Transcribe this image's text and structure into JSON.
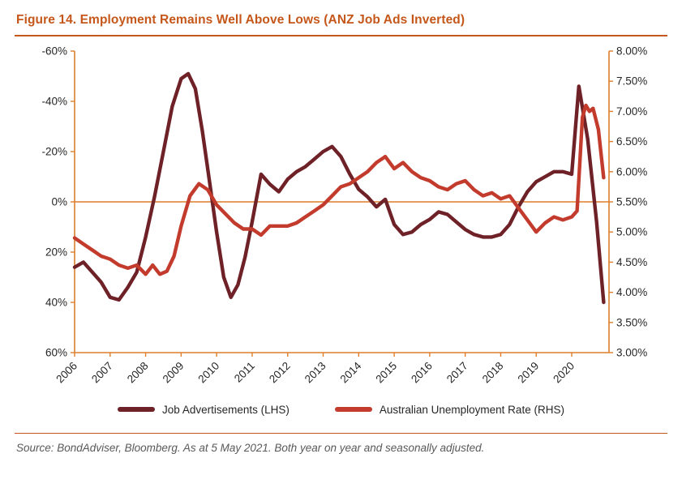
{
  "figure": {
    "title": "Figure 14. Employment Remains Well Above Lows (ANZ Job Ads Inverted)",
    "source": "Source: BondAdviser, Bloomberg. As at 5 May 2021. Both year on year and seasonally adjusted."
  },
  "colors": {
    "accent_orange": "#C5571A",
    "axis_orange": "#DE7E2B",
    "job_ads": "#6E2127",
    "unemployment": "#C23B2C",
    "tick_text": "#262626",
    "source_gray": "#595959"
  },
  "legend": {
    "items": [
      {
        "label": "Job Advertisements (LHS)",
        "color_key": "job_ads"
      },
      {
        "label": "Australian Unemployment Rate (RHS)",
        "color_key": "unemployment"
      }
    ]
  },
  "chart_data": {
    "type": "line",
    "title": "Employment Remains Well Above Lows (ANZ Job Ads Inverted)",
    "x_range": [
      2006,
      2021.05
    ],
    "x_ticks": [
      2006,
      2007,
      2008,
      2009,
      2010,
      2011,
      2012,
      2013,
      2014,
      2015,
      2016,
      2017,
      2018,
      2019,
      2020
    ],
    "x_tick_labels": [
      "2006",
      "2007",
      "2008",
      "2009",
      "2010",
      "2011",
      "2012",
      "2013",
      "2014",
      "2015",
      "2016",
      "2017",
      "2018",
      "2019",
      "2020"
    ],
    "lhs": {
      "label": "Job Advertisements YoY % (inverted)",
      "inverted": true,
      "range": [
        -60,
        60
      ],
      "ticks": [
        -60,
        -40,
        -20,
        0,
        20,
        40,
        60
      ],
      "tick_labels": [
        "-60%",
        "-40%",
        "-20%",
        "0%",
        "20%",
        "40%",
        "60%"
      ]
    },
    "rhs": {
      "label": "Australian Unemployment Rate %",
      "range": [
        3,
        8
      ],
      "ticks": [
        8,
        7.5,
        7,
        6.5,
        6,
        5.5,
        5,
        4.5,
        4,
        3.5,
        3
      ],
      "tick_labels": [
        "8.00%",
        "7.50%",
        "7.00%",
        "6.50%",
        "6.00%",
        "5.50%",
        "5.00%",
        "4.50%",
        "4.00%",
        "3.50%",
        "3.00%"
      ]
    },
    "zero_line": {
      "lhs_value": 0,
      "rhs_value": 5.5
    },
    "series": [
      {
        "name": "Job Advertisements (LHS)",
        "axis": "lhs",
        "color_key": "job_ads",
        "x": [
          2006.0,
          2006.25,
          2006.5,
          2006.75,
          2007.0,
          2007.25,
          2007.5,
          2007.75,
          2008.0,
          2008.25,
          2008.5,
          2008.75,
          2009.0,
          2009.2,
          2009.4,
          2009.6,
          2009.8,
          2010.0,
          2010.2,
          2010.4,
          2010.6,
          2010.8,
          2011.0,
          2011.25,
          2011.5,
          2011.75,
          2012.0,
          2012.25,
          2012.5,
          2012.75,
          2013.0,
          2013.25,
          2013.5,
          2013.75,
          2014.0,
          2014.25,
          2014.5,
          2014.75,
          2015.0,
          2015.25,
          2015.5,
          2015.75,
          2016.0,
          2016.25,
          2016.5,
          2016.75,
          2017.0,
          2017.25,
          2017.5,
          2017.75,
          2018.0,
          2018.25,
          2018.5,
          2018.75,
          2019.0,
          2019.25,
          2019.5,
          2019.75,
          2020.0,
          2020.2,
          2020.45,
          2020.7,
          2020.9
        ],
        "values": [
          26,
          24,
          28,
          32,
          38,
          39,
          34,
          28,
          14,
          -2,
          -20,
          -38,
          -49,
          -51,
          -45,
          -28,
          -8,
          12,
          30,
          38,
          33,
          22,
          8,
          -11,
          -7,
          -4,
          -9,
          -12,
          -14,
          -17,
          -20,
          -22,
          -18,
          -11,
          -5,
          -2,
          2,
          -1,
          9,
          13,
          12,
          9,
          7,
          4,
          5,
          8,
          11,
          13,
          14,
          14,
          13,
          9,
          2,
          -4,
          -8,
          -10,
          -12,
          -12,
          -11,
          -46,
          -25,
          8,
          40
        ]
      },
      {
        "name": "Australian Unemployment Rate (RHS)",
        "axis": "rhs",
        "color_key": "unemployment",
        "x": [
          2006.0,
          2006.25,
          2006.5,
          2006.75,
          2007.0,
          2007.25,
          2007.5,
          2007.75,
          2008.0,
          2008.2,
          2008.4,
          2008.6,
          2008.8,
          2009.0,
          2009.25,
          2009.5,
          2009.75,
          2010.0,
          2010.25,
          2010.5,
          2010.75,
          2011.0,
          2011.25,
          2011.5,
          2011.75,
          2012.0,
          2012.25,
          2012.5,
          2012.75,
          2013.0,
          2013.25,
          2013.5,
          2013.75,
          2014.0,
          2014.25,
          2014.5,
          2014.75,
          2015.0,
          2015.25,
          2015.5,
          2015.75,
          2016.0,
          2016.25,
          2016.5,
          2016.75,
          2017.0,
          2017.25,
          2017.5,
          2017.75,
          2018.0,
          2018.25,
          2018.5,
          2018.75,
          2019.0,
          2019.25,
          2019.5,
          2019.75,
          2020.0,
          2020.15,
          2020.3,
          2020.4,
          2020.5,
          2020.6,
          2020.75,
          2020.9
        ],
        "values": [
          4.9,
          4.8,
          4.7,
          4.6,
          4.55,
          4.45,
          4.4,
          4.45,
          4.3,
          4.45,
          4.3,
          4.35,
          4.6,
          5.1,
          5.6,
          5.8,
          5.7,
          5.45,
          5.3,
          5.15,
          5.05,
          5.05,
          4.95,
          5.1,
          5.1,
          5.1,
          5.15,
          5.25,
          5.35,
          5.45,
          5.6,
          5.75,
          5.8,
          5.9,
          6.0,
          6.15,
          6.25,
          6.05,
          6.15,
          6.0,
          5.9,
          5.85,
          5.75,
          5.7,
          5.8,
          5.85,
          5.7,
          5.6,
          5.65,
          5.55,
          5.6,
          5.4,
          5.2,
          5.0,
          5.15,
          5.25,
          5.2,
          5.25,
          5.35,
          6.9,
          7.1,
          7.0,
          7.05,
          6.7,
          5.9
        ]
      }
    ]
  }
}
